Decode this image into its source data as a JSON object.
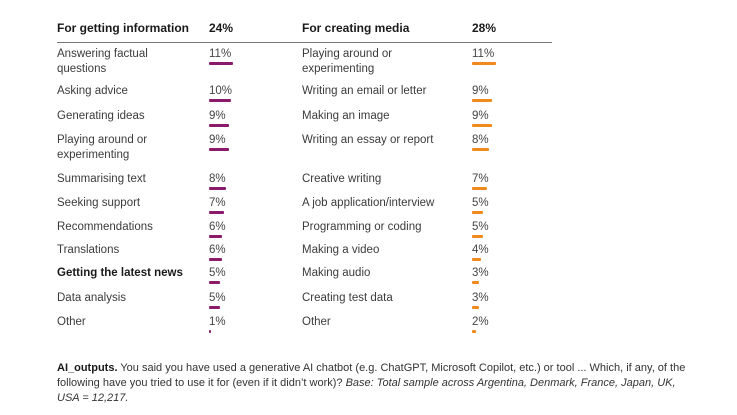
{
  "chart_data": {
    "type": "bar",
    "panels": [
      {
        "title": "For getting information",
        "total": "24%",
        "color": "#8b1a6b",
        "categories": [
          "Answering factual questions",
          "Asking advice",
          "Generating ideas",
          "Playing around or experimenting",
          "Summarising text",
          "Seeking support",
          "Recommendations",
          "Translations",
          "Getting the latest news",
          "Data analysis",
          "Other"
        ],
        "labels": [
          [
            "Answering factual",
            "questions"
          ],
          [
            "Asking advice"
          ],
          [
            "Generating ideas"
          ],
          [
            "Playing around or",
            "experimenting"
          ],
          [
            "Summarising text"
          ],
          [
            "Seeking support"
          ],
          [
            "Recommendations"
          ],
          [
            "Translations"
          ],
          [
            "Getting the latest news"
          ],
          [
            "Data analysis"
          ],
          [
            "Other"
          ]
        ],
        "bold_index": 8,
        "values": [
          11,
          10,
          9,
          9,
          8,
          7,
          6,
          6,
          5,
          5,
          1
        ],
        "value_labels": [
          "11%",
          "10%",
          "9%",
          "9%",
          "8%",
          "7%",
          "6%",
          "6%",
          "5%",
          "5%",
          "1%"
        ]
      },
      {
        "title": "For creating media",
        "total": "28%",
        "color": "#f08a1c",
        "categories": [
          "Playing around or experimenting",
          "Writing an email or letter",
          "Making an image",
          "Writing an essay or report",
          "Creative writing",
          "A job application/interview",
          "Programming or coding",
          "Making a video",
          "Making audio",
          "Creating test data",
          "Other"
        ],
        "labels": [
          [
            "Playing around or",
            "experimenting"
          ],
          [
            "Writing an email or letter"
          ],
          [
            "Making an image"
          ],
          [
            "Writing an essay or report"
          ],
          [
            "Creative writing"
          ],
          [
            "A job application/interview"
          ],
          [
            "Programming or coding"
          ],
          [
            "Making a video"
          ],
          [
            "Making audio"
          ],
          [
            "Creating test data"
          ],
          [
            "Other"
          ]
        ],
        "bold_index": -1,
        "values": [
          11,
          9,
          9,
          8,
          7,
          5,
          5,
          4,
          3,
          3,
          2
        ],
        "value_labels": [
          "11%",
          "9%",
          "9%",
          "8%",
          "7%",
          "5%",
          "5%",
          "4%",
          "3%",
          "3%",
          "2%"
        ]
      }
    ],
    "xlim": [
      0,
      11
    ]
  },
  "note": {
    "key": "AI_outputs.",
    "text": " You said you have used a generative AI chatbot (e.g. ChatGPT, Microsoft Copilot, etc.) or tool ... Which, if any, of the following have you tried to use it for (even if it didn’t work)? ",
    "base": "Base: Total sample across Argentina, Denmark, France, Japan, UK, USA = 12,217."
  }
}
